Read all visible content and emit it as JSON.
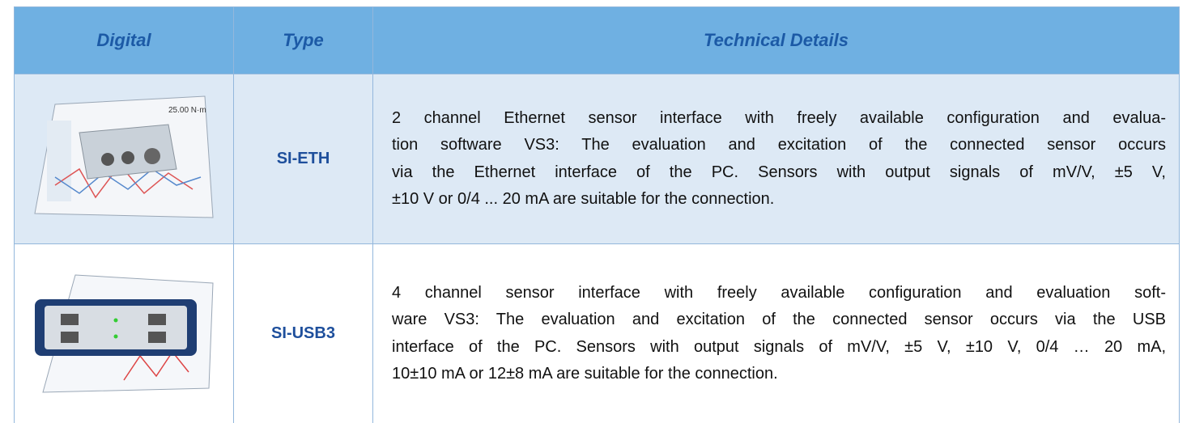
{
  "table": {
    "headers": [
      "Digital",
      "Type",
      "Technical Details"
    ],
    "rows": [
      {
        "type": "SI-ETH",
        "details": [
          "2 channel Ethernet sensor interface with freely available configuration and evalua-",
          "tion software VS3: The evaluation and excitation of the connected sensor occurs",
          "via the Ethernet interface of the PC. Sensors with output signals of mV/V, ±5 V,",
          "±10 V or 0/4 ... 20 mA are suitable for the connection."
        ]
      },
      {
        "type": "SI-USB3",
        "details": [
          "4 channel sensor interface with freely available configuration and evaluation soft-",
          "ware VS3: The evaluation and excitation of the connected sensor occurs via the USB",
          "interface of the PC. Sensors with output signals of mV/V, ±5 V, ±10 V, 0/4 … 20 mA,",
          "10±10 mA or 12±8 mA are suitable for the connection."
        ]
      }
    ]
  }
}
